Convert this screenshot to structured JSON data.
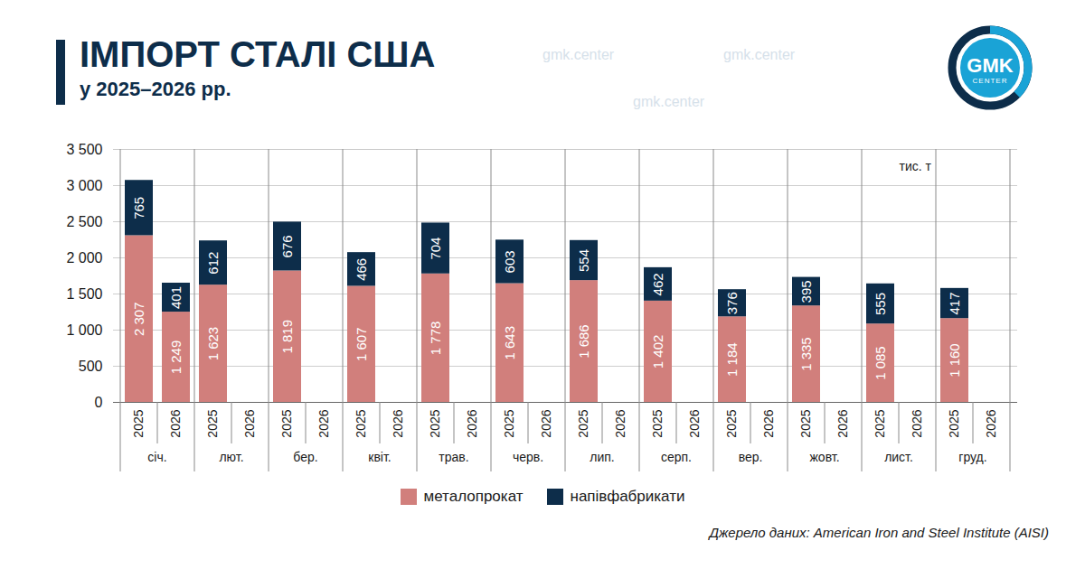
{
  "chart_data": {
    "type": "bar",
    "title": "ІМПОРТ СТАЛІ США",
    "subtitle": "у 2025–2026 рр.",
    "y_label": "тис. т",
    "source": "Джерело даних: American Iron and Steel Institute (AISI)",
    "logo": "GMK",
    "logo_sub": "CENTER",
    "watermark": "gmk.center",
    "stacked": true,
    "data_labels": true,
    "grid": true,
    "legend": "bottom",
    "categories": [
      "2025",
      "2026",
      "2025",
      "2026",
      "2025",
      "2026",
      "2025",
      "2026",
      "2025",
      "2026",
      "2025",
      "2026",
      "2025",
      "2026",
      "2025",
      "2026",
      "2025",
      "2026",
      "2025",
      "2026",
      "2025",
      "2026",
      "2025",
      "2026"
    ],
    "groups": [
      "січ.",
      "лют.",
      "бер.",
      "квіт.",
      "трав.",
      "черв.",
      "лип.",
      "серп.",
      "вер.",
      "жовт.",
      "лист.",
      "груд."
    ],
    "series": [
      {
        "name": "металопрокат",
        "color": "#d17f7c",
        "values": [
          2307,
          1249,
          1623,
          null,
          1819,
          null,
          1607,
          null,
          1778,
          null,
          1643,
          null,
          1686,
          null,
          1402,
          null,
          1184,
          null,
          1335,
          null,
          1085,
          null,
          1160,
          null
        ],
        "value_labels": [
          "2 307",
          "1 249",
          "1 623",
          null,
          "1 819",
          null,
          "1 607",
          null,
          "1 778",
          null,
          "1 643",
          null,
          "1 686",
          null,
          "1 402",
          null,
          "1 184",
          null,
          "1 335",
          null,
          "1 085",
          null,
          "1 160",
          null
        ]
      },
      {
        "name": "напівфабрикати",
        "color": "#0d2d4a",
        "values": [
          765,
          401,
          612,
          null,
          676,
          null,
          466,
          null,
          704,
          null,
          603,
          null,
          554,
          null,
          462,
          null,
          376,
          null,
          395,
          null,
          555,
          null,
          417,
          null
        ]
      }
    ],
    "ylim": [
      0,
      3500
    ],
    "yticks": [
      0,
      500,
      {
        "value": 1000,
        "label": "1 000"
      },
      {
        "value": 1500,
        "label": "1 500"
      },
      {
        "value": 2000,
        "label": "2 000"
      },
      {
        "value": 2500,
        "label": "2 500"
      },
      {
        "value": 3000,
        "label": "3 000"
      },
      {
        "value": 3500,
        "label": "3 500"
      }
    ]
  }
}
